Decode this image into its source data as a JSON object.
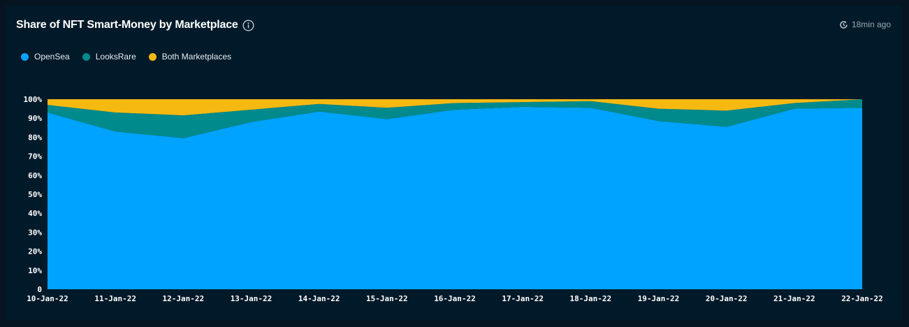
{
  "header": {
    "title": "Share of NFT Smart-Money by Marketplace",
    "updated": "18min ago",
    "info_icon": "info-icon",
    "clock_icon": "refresh-clock-icon"
  },
  "colors": {
    "opensea": "#00a3ff",
    "looksrare": "#008a8c",
    "both": "#f6b912",
    "background": "#011a29"
  },
  "chart_data": {
    "type": "area",
    "stacked": true,
    "normalized": true,
    "x": [
      "10-Jan-22",
      "11-Jan-22",
      "12-Jan-22",
      "13-Jan-22",
      "14-Jan-22",
      "15-Jan-22",
      "16-Jan-22",
      "17-Jan-22",
      "18-Jan-22",
      "19-Jan-22",
      "20-Jan-22",
      "21-Jan-22",
      "22-Jan-22"
    ],
    "series": [
      {
        "name": "OpenSea",
        "values": [
          93,
          83,
          79.5,
          88,
          93.5,
          89.5,
          94.5,
          96,
          95.5,
          88.5,
          85.5,
          95,
          95.5
        ]
      },
      {
        "name": "LooksRare",
        "values": [
          4,
          10,
          12,
          6.5,
          4,
          6,
          3.5,
          2.5,
          3.5,
          6.5,
          8.5,
          3,
          4.5
        ]
      },
      {
        "name": "Both Marketplaces",
        "values": [
          3,
          7,
          8.5,
          5.5,
          2.5,
          4.5,
          2,
          1.5,
          1,
          5,
          6,
          2,
          0
        ]
      }
    ],
    "y_ticks": [
      "0",
      "10%",
      "20%",
      "30%",
      "40%",
      "50%",
      "60%",
      "70%",
      "80%",
      "90%",
      "100%"
    ],
    "ylim": [
      0,
      100
    ],
    "xlabel": "",
    "ylabel": "",
    "grid": false,
    "legend": "top-left"
  }
}
